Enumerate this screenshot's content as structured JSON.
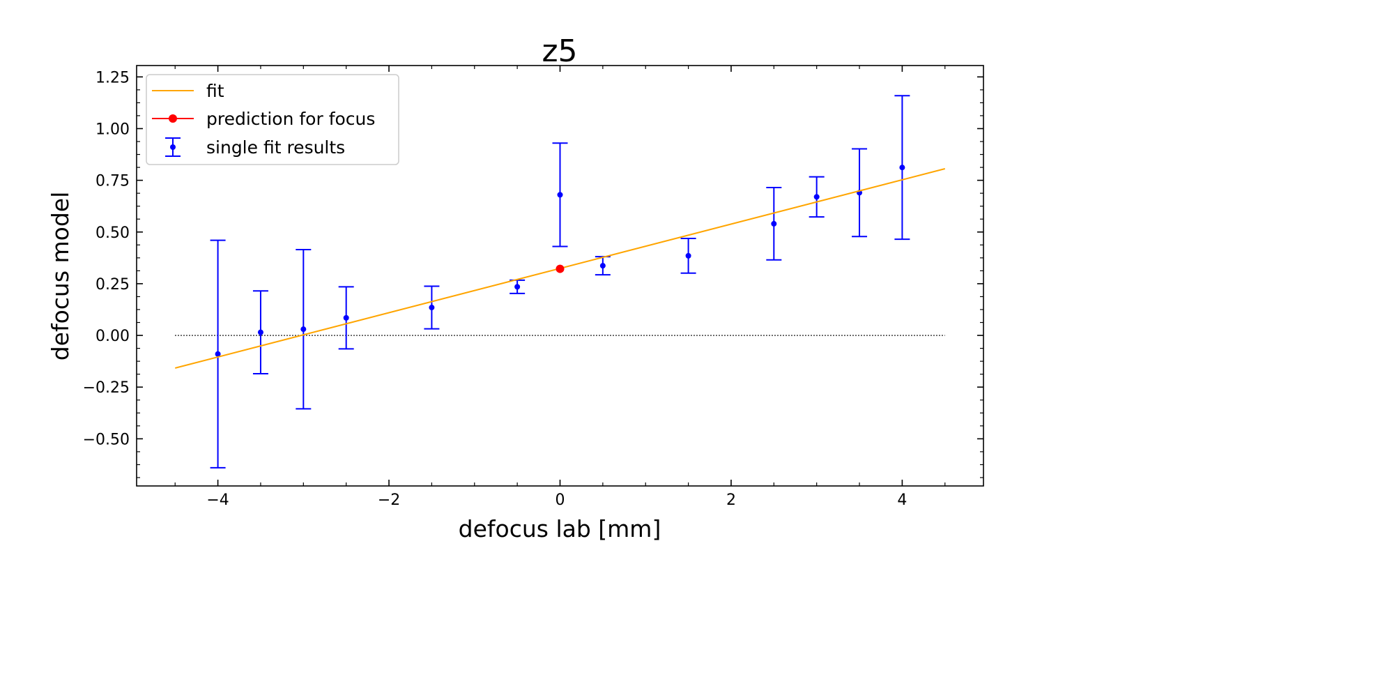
{
  "chart_data": {
    "type": "scatter",
    "title": "z5",
    "xlabel": "defocus lab [mm]",
    "ylabel": "defocus model",
    "xlim": [
      -4.95,
      4.95
    ],
    "ylim": [
      -0.728,
      1.305
    ],
    "xticks": [
      -4,
      -2,
      0,
      2,
      4
    ],
    "xtick_labels": [
      "−4",
      "−2",
      "0",
      "2",
      "4"
    ],
    "yticks": [
      -0.5,
      -0.25,
      0,
      0.25,
      0.5,
      0.75,
      1.0,
      1.25
    ],
    "ytick_labels": [
      "−0.50",
      "−0.25",
      "0.00",
      "0.25",
      "0.50",
      "0.75",
      "1.00",
      "1.25"
    ],
    "grid": false,
    "legend_position": "top-left",
    "legend": [
      "fit",
      "prediction for focus",
      "single fit results"
    ],
    "series": [
      {
        "name": "fit",
        "type": "line",
        "color": "#ffa500",
        "x": [
          -4.5,
          4.5
        ],
        "y": [
          -0.158,
          0.806
        ]
      },
      {
        "name": "prediction for focus",
        "type": "point",
        "color": "#ff0000",
        "x": [
          0
        ],
        "y": [
          0.322
        ]
      },
      {
        "name": "single fit results",
        "type": "errorbar",
        "color": "#0000ff",
        "x": [
          -4,
          -3.5,
          -3,
          -2.5,
          -1.5,
          -0.5,
          0,
          0.5,
          1.5,
          2.5,
          3,
          3.5,
          4
        ],
        "y": [
          -0.09,
          0.015,
          0.03,
          0.085,
          0.135,
          0.235,
          0.68,
          0.337,
          0.385,
          0.54,
          0.67,
          0.69,
          0.812
        ],
        "yerr": [
          0.55,
          0.2,
          0.385,
          0.15,
          0.103,
          0.032,
          0.25,
          0.044,
          0.084,
          0.175,
          0.097,
          0.212,
          0.347
        ]
      },
      {
        "name": "zero line",
        "type": "dotted",
        "color": "#000000",
        "x": [
          -4.5,
          4.5
        ],
        "y": [
          0,
          0
        ]
      }
    ]
  }
}
